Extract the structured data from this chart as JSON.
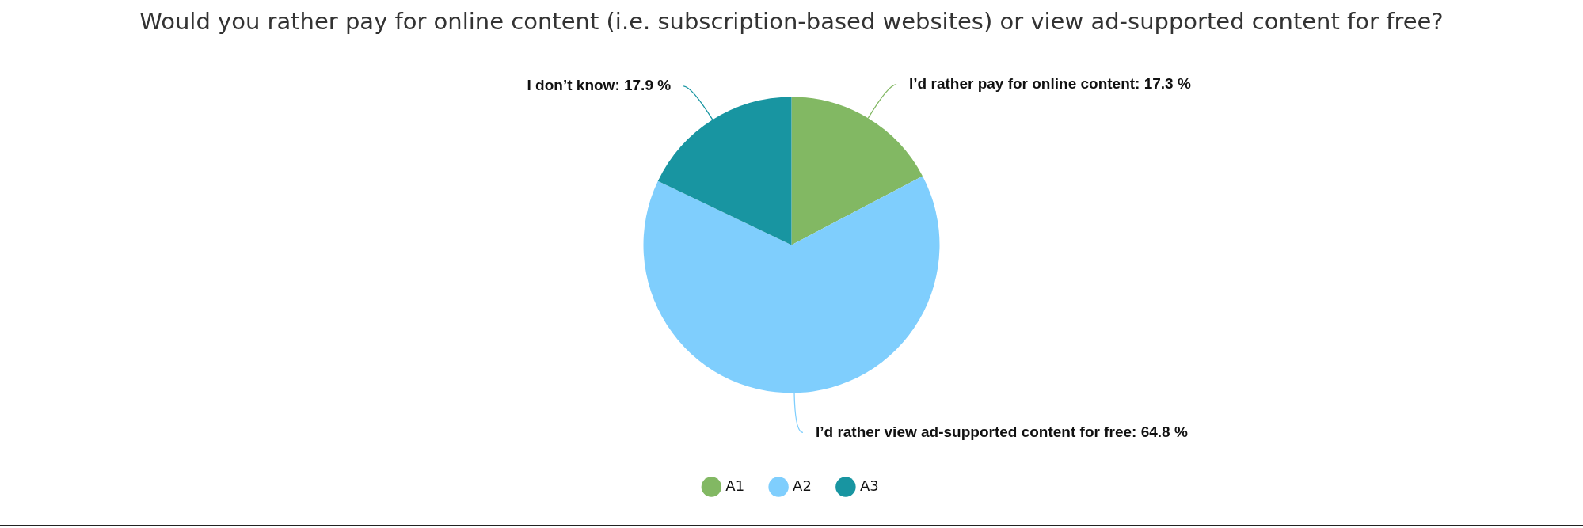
{
  "chart_data": {
    "type": "pie",
    "title": "Would you rather pay for online content (i.e. subscription-based websites) or view ad-supported content for free?",
    "categories": [
      "A1",
      "A2",
      "A3"
    ],
    "values": [
      17.3,
      64.8,
      17.9
    ],
    "colors": [
      "#82b863",
      "#7fcefd",
      "#1895a1"
    ],
    "value_labels": [
      "I’d rather pay for online content: 17.3 %",
      "I’d rather view ad-supported content for free: 64.8 %",
      "I don’t know: 17.9 %"
    ],
    "legend": "bottom"
  }
}
